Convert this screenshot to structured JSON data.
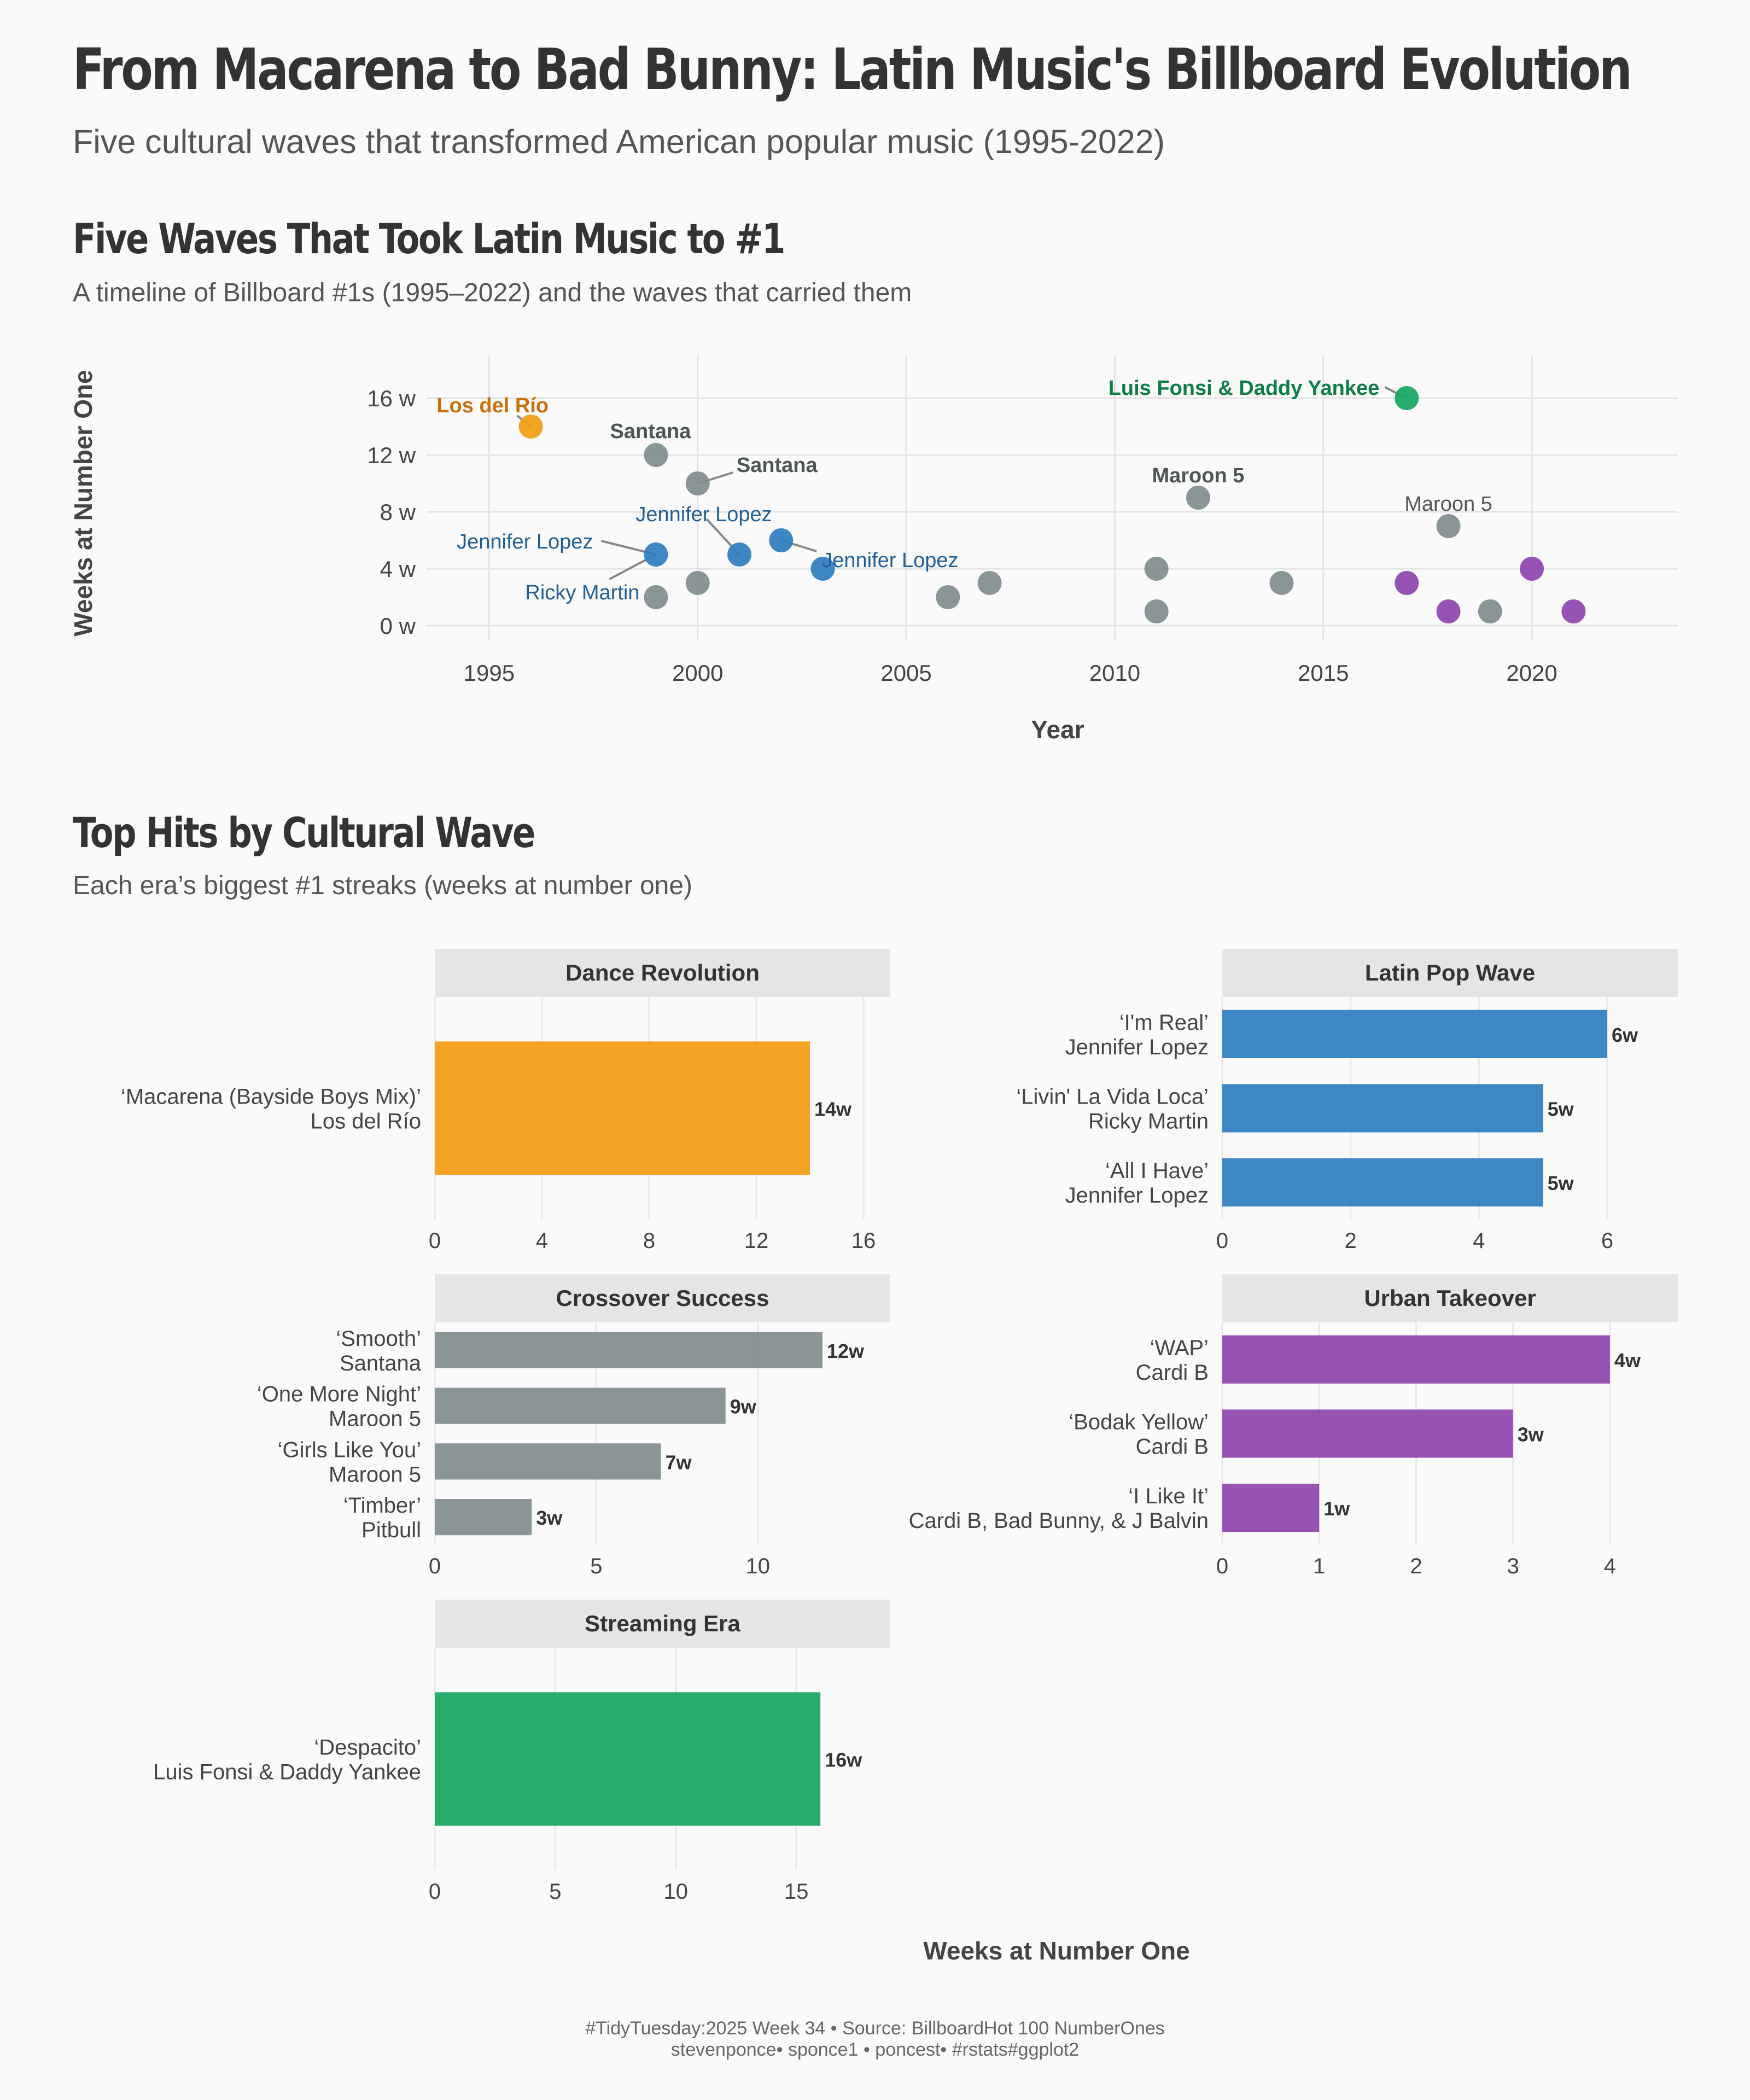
{
  "header": {
    "title": "From Macarena to Bad Bunny: Latin Music's Billboard Evolution",
    "subtitle": "Five cultural waves that transformed American popular music (1995-2022)"
  },
  "timeline_section": {
    "title": "Five Waves That Took Latin Music to #1",
    "subtitle": "A timeline of Billboard #1s (1995–2022) and the waves that carried them"
  },
  "bars_section": {
    "title": "Top Hits by Cultural Wave",
    "subtitle": "Each era’s biggest #1 streaks (weeks at number one)"
  },
  "caption": {
    "line1": "#TidyTuesday:2025 Week 34 • Source: BillboardHot 100 NumberOnes",
    "line2": "stevenponce• sponce1 • poncest• #rstats#ggplot2"
  },
  "colors": {
    "Dance Revolution": "#f39c12",
    "Latin Pop Wave": "#2e7dbf",
    "Crossover Success": "#7f8c8d",
    "Urban Takeover": "#8e44ad",
    "Streaming Era": "#16a560"
  },
  "chart_data": [
    {
      "type": "scatter",
      "xlabel": "Year",
      "ylabel": "Weeks at Number One",
      "xlim": [
        1993.5,
        2023.5
      ],
      "ylim": [
        -1,
        19
      ],
      "x_ticks": [
        1995,
        2000,
        2005,
        2010,
        2015,
        2020
      ],
      "y_ticks": [
        0,
        4,
        8,
        12,
        16
      ],
      "y_tick_labels": [
        "0 w",
        "4 w",
        "8 w",
        "12 w",
        "16 w"
      ],
      "grid": true,
      "points": [
        {
          "x": 1996,
          "y": 14,
          "wave": "Dance Revolution"
        },
        {
          "x": 1999,
          "y": 12,
          "wave": "Crossover Success"
        },
        {
          "x": 1999,
          "y": 5,
          "wave": "Latin Pop Wave"
        },
        {
          "x": 1999,
          "y": 2,
          "wave": "Crossover Success"
        },
        {
          "x": 2000,
          "y": 10,
          "wave": "Crossover Success"
        },
        {
          "x": 2000,
          "y": 3,
          "wave": "Crossover Success"
        },
        {
          "x": 2001,
          "y": 5,
          "wave": "Latin Pop Wave"
        },
        {
          "x": 2002,
          "y": 6,
          "wave": "Latin Pop Wave"
        },
        {
          "x": 2003,
          "y": 4,
          "wave": "Latin Pop Wave"
        },
        {
          "x": 2006,
          "y": 2,
          "wave": "Crossover Success"
        },
        {
          "x": 2007,
          "y": 3,
          "wave": "Crossover Success"
        },
        {
          "x": 2011,
          "y": 4,
          "wave": "Crossover Success"
        },
        {
          "x": 2011,
          "y": 1,
          "wave": "Crossover Success"
        },
        {
          "x": 2012,
          "y": 9,
          "wave": "Crossover Success"
        },
        {
          "x": 2014,
          "y": 3,
          "wave": "Crossover Success"
        },
        {
          "x": 2017,
          "y": 16,
          "wave": "Streaming Era"
        },
        {
          "x": 2017,
          "y": 3,
          "wave": "Urban Takeover"
        },
        {
          "x": 2018,
          "y": 7,
          "wave": "Crossover Success"
        },
        {
          "x": 2018,
          "y": 1,
          "wave": "Urban Takeover"
        },
        {
          "x": 2019,
          "y": 1,
          "wave": "Crossover Success"
        },
        {
          "x": 2020,
          "y": 4,
          "wave": "Urban Takeover"
        },
        {
          "x": 2021,
          "y": 1,
          "wave": "Urban Takeover"
        }
      ],
      "annotations": [
        {
          "text": "Los del Río",
          "x": 1996,
          "y": 14,
          "wave": "Dance Revolution",
          "bold": true
        },
        {
          "text": "Santana",
          "x": 1999,
          "y": 12,
          "wave": "Crossover Success",
          "bold": true
        },
        {
          "text": "Santana",
          "x": 2000,
          "y": 10,
          "wave": "Crossover Success",
          "bold": true
        },
        {
          "text": "Jennifer Lopez",
          "x": 1999,
          "y": 5,
          "wave": "Latin Pop Wave",
          "bold": false
        },
        {
          "text": "Ricky Martin",
          "x": 1999,
          "y": 5,
          "wave": "Latin Pop Wave",
          "bold": false
        },
        {
          "text": "Jennifer Lopez",
          "x": 2001,
          "y": 5,
          "wave": "Latin Pop Wave",
          "bold": false
        },
        {
          "text": "Jennifer Lopez",
          "x": 2002,
          "y": 6,
          "wave": "Latin Pop Wave",
          "bold": false
        },
        {
          "text": "Maroon 5",
          "x": 2012,
          "y": 9,
          "wave": "Crossover Success",
          "bold": true
        },
        {
          "text": "Maroon 5",
          "x": 2018,
          "y": 7,
          "wave": "Crossover Success",
          "bold": false
        },
        {
          "text": "Luis Fonsi & Daddy Yankee",
          "x": 2017,
          "y": 16,
          "wave": "Streaming Era",
          "bold": true
        }
      ]
    },
    {
      "type": "bar",
      "orientation": "horizontal",
      "xlabel": "Weeks at Number One",
      "panels": [
        {
          "title": "Dance Revolution",
          "wave": "Dance Revolution",
          "xlim": [
            0,
            17
          ],
          "ticks": [
            0,
            4,
            8,
            12,
            16
          ],
          "bars": [
            {
              "song": "‘Macarena (Bayside Boys Mix)’",
              "artist": "Los del Río",
              "value": 14,
              "label": "14w"
            }
          ]
        },
        {
          "title": "Latin Pop Wave",
          "wave": "Latin Pop Wave",
          "xlim": [
            0,
            7.1
          ],
          "ticks": [
            0,
            2,
            4,
            6
          ],
          "bars": [
            {
              "song": "‘I'm Real’",
              "artist": "Jennifer Lopez",
              "value": 6,
              "label": "6w"
            },
            {
              "song": "‘Livin' La Vida Loca’",
              "artist": "Ricky Martin",
              "value": 5,
              "label": "5w"
            },
            {
              "song": "‘All I Have’",
              "artist": "Jennifer Lopez",
              "value": 5,
              "label": "5w"
            }
          ]
        },
        {
          "title": "Crossover Success",
          "wave": "Crossover Success",
          "xlim": [
            0,
            14.1
          ],
          "ticks": [
            0,
            5,
            10
          ],
          "bars": [
            {
              "song": "‘Smooth’",
              "artist": "Santana",
              "value": 12,
              "label": "12w"
            },
            {
              "song": "‘One More Night’",
              "artist": "Maroon 5",
              "value": 9,
              "label": "9w"
            },
            {
              "song": "‘Girls Like You’",
              "artist": "Maroon 5",
              "value": 7,
              "label": "7w"
            },
            {
              "song": "‘Timber’",
              "artist": "Pitbull",
              "value": 3,
              "label": "3w"
            }
          ]
        },
        {
          "title": "Urban Takeover",
          "wave": "Urban Takeover",
          "xlim": [
            0,
            4.7
          ],
          "ticks": [
            0,
            1,
            2,
            3,
            4
          ],
          "bars": [
            {
              "song": "‘WAP’",
              "artist": "Cardi B",
              "value": 4,
              "label": "4w"
            },
            {
              "song": "‘Bodak Yellow’",
              "artist": "Cardi B",
              "value": 3,
              "label": "3w"
            },
            {
              "song": "‘I Like It’",
              "artist": "Cardi B, Bad Bunny, & J Balvin",
              "value": 1,
              "label": "1w"
            }
          ]
        },
        {
          "title": "Streaming Era",
          "wave": "Streaming Era",
          "xlim": [
            0,
            18.9
          ],
          "ticks": [
            0,
            5,
            10,
            15
          ],
          "bars": [
            {
              "song": "‘Despacito’",
              "artist": "Luis Fonsi & Daddy Yankee",
              "value": 16,
              "label": "16w"
            }
          ]
        }
      ]
    }
  ]
}
